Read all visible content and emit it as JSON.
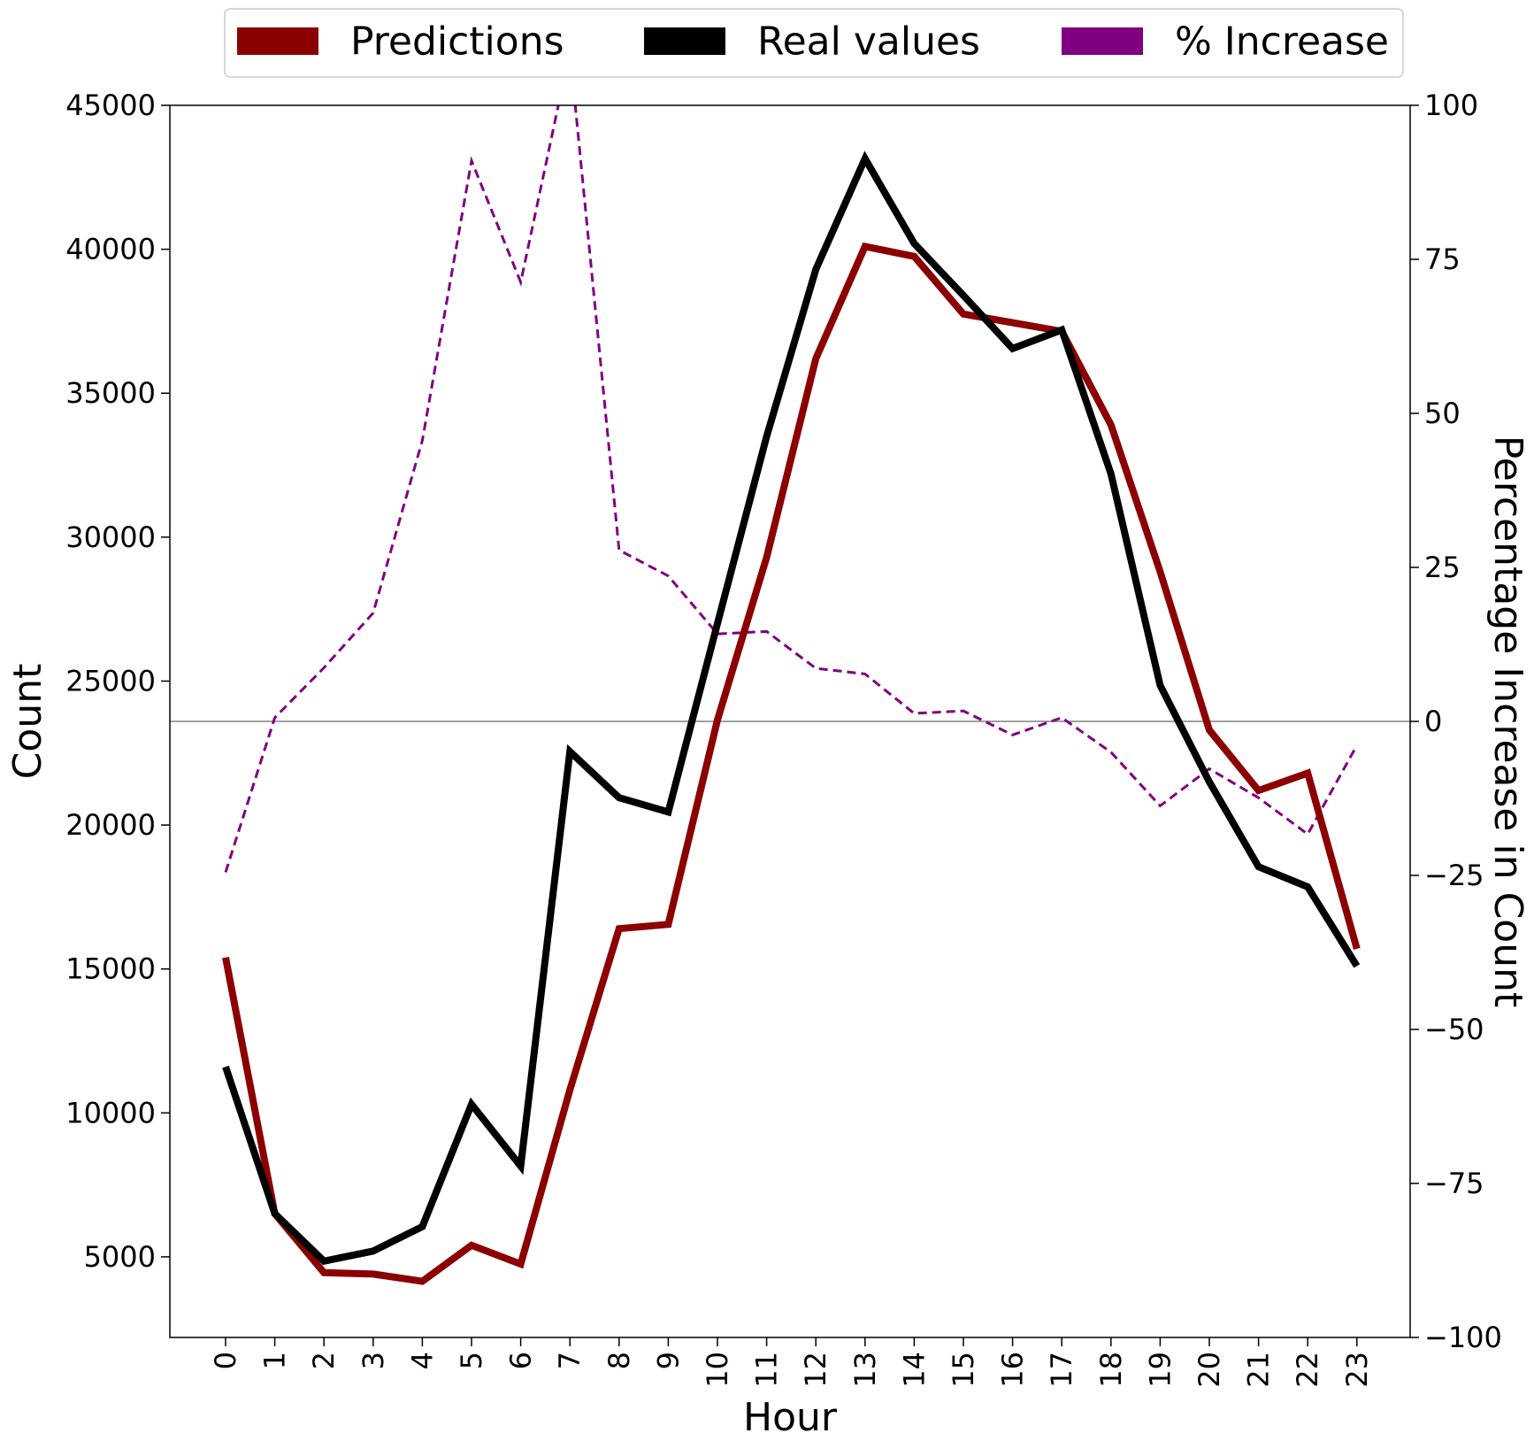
{
  "chart_data": {
    "type": "line",
    "xlabel": "Hour",
    "ylabel": "Count",
    "y2label": "Percentage Increase in Count",
    "x": [
      0,
      1,
      2,
      3,
      4,
      5,
      6,
      7,
      8,
      9,
      10,
      11,
      12,
      13,
      14,
      15,
      16,
      17,
      18,
      19,
      20,
      21,
      22,
      23
    ],
    "x_ticks": [
      "0",
      "1",
      "2",
      "3",
      "4",
      "5",
      "6",
      "7",
      "8",
      "9",
      "10",
      "11",
      "12",
      "13",
      "14",
      "15",
      "16",
      "17",
      "18",
      "19",
      "20",
      "21",
      "22",
      "23"
    ],
    "ylim": [
      2200,
      45000
    ],
    "y_ticks": [
      "5000",
      "10000",
      "15000",
      "20000",
      "25000",
      "30000",
      "35000",
      "40000",
      "45000"
    ],
    "y2lim": [
      -100,
      100
    ],
    "y2_ticks": [
      "−100",
      "−75",
      "−50",
      "−25",
      "0",
      "25",
      "50",
      "75",
      "100"
    ],
    "legend_position": "top-center",
    "zero_line": true,
    "series": [
      {
        "name": "Predictions",
        "axis": "left",
        "color": "#8b0000",
        "values": [
          15400,
          6500,
          4450,
          4400,
          4150,
          5400,
          4750,
          10800,
          16400,
          16550,
          23650,
          29300,
          36200,
          40100,
          39750,
          37750,
          37450,
          37150,
          33900,
          28800,
          23300,
          21200,
          21800,
          15700
        ]
      },
      {
        "name": "Real values",
        "axis": "left",
        "color": "#000000",
        "values": [
          11600,
          6500,
          4850,
          5200,
          6050,
          10300,
          8150,
          22550,
          20950,
          20450,
          27000,
          33500,
          39300,
          43150,
          40200,
          38400,
          36550,
          37200,
          32200,
          24850,
          21500,
          18550,
          17850,
          15100
        ]
      },
      {
        "name": "% Increase",
        "axis": "right",
        "color": "#800080",
        "dashed": true,
        "values": [
          -24.5,
          0.6,
          8.7,
          17.6,
          45.6,
          91.0,
          71.3,
          108.8,
          27.8,
          23.6,
          14.2,
          14.6,
          8.6,
          7.7,
          1.3,
          1.7,
          -2.2,
          0.6,
          -5.0,
          -13.7,
          -7.7,
          -12.4,
          -18.3,
          -3.9
        ]
      }
    ]
  }
}
